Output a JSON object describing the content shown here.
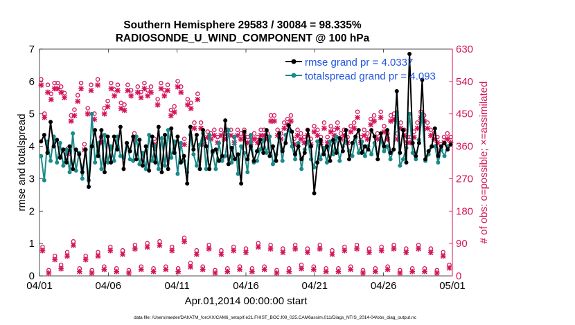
{
  "chart_data": {
    "type": "line",
    "title_line1": "Southern Hemisphere 29583 / 30084 = 98.335%",
    "title_line2": "RADIOSONDE_U_WIND_COMPONENT @ 100 hPa",
    "xlabel": "Apr.01,2014 00:00:00 start",
    "ylabel": "rmse and totalspread",
    "y2label": "# of obs: o=possible; ×=assimilated",
    "footer": "data file: /Users/raeder/DAI/ATM_forcXX/CAM6_setup/f.e21.FHIST_BGC.f09_025.CAM6assim.011/Diags_NTrS_2014-04/obs_diag_output.nc",
    "x_range_days": [
      0,
      30
    ],
    "ylim": [
      0,
      7
    ],
    "y2lim": [
      0,
      630
    ],
    "x_ticks": [
      {
        "day": 0,
        "label": "04/01"
      },
      {
        "day": 5,
        "label": "04/06"
      },
      {
        "day": 10,
        "label": "04/11"
      },
      {
        "day": 15,
        "label": "04/16"
      },
      {
        "day": 20,
        "label": "04/21"
      },
      {
        "day": 25,
        "label": "04/26"
      },
      {
        "day": 30,
        "label": "05/01"
      }
    ],
    "y_ticks": [
      "0",
      "1",
      "2",
      "3",
      "4",
      "5",
      "6",
      "7"
    ],
    "y2_ticks": [
      "0",
      "90",
      "180",
      "270",
      "360",
      "450",
      "540",
      "630"
    ],
    "colors": {
      "rmse": "#000000",
      "spread": "#1a8a8a",
      "obs": "#d4145a",
      "legend_text": "#1f55e0"
    },
    "legend": [
      {
        "label": "rmse grand pr = 4.0337",
        "series": "rmse"
      },
      {
        "label": "totalspread grand pr = 4.093",
        "series": "spread"
      }
    ],
    "series": [
      {
        "name": "rmse",
        "values": [
          4.15,
          4.35,
          3.8,
          4.75,
          4.0,
          4.2,
          3.65,
          3.9,
          3.5,
          4.0,
          3.3,
          3.9,
          3.75,
          3.2,
          3.9,
          2.75,
          4.0,
          4.5,
          3.7,
          4.5,
          3.2,
          4.3,
          3.5,
          4.3,
          3.9,
          4.6,
          3.3,
          4.1,
          3.85,
          4.3,
          3.6,
          4.2,
          3.4,
          4.0,
          3.25,
          4.3,
          3.5,
          4.6,
          3.2,
          4.35,
          3.3,
          4.55,
          3.8,
          4.3,
          3.5,
          3.7,
          2.85,
          4.6,
          3.9,
          4.35,
          3.3,
          4.5,
          4.0,
          3.3,
          3.85,
          3.9,
          3.55,
          3.7,
          4.8,
          3.45,
          3.95,
          3.6,
          3.75,
          2.85,
          4.45,
          3.6,
          4.0,
          3.55,
          3.85,
          4.2,
          3.8,
          4.5,
          3.7,
          4.0,
          3.55,
          4.4,
          3.85,
          4.1,
          4.65,
          4.45,
          3.75,
          4.0,
          3.6,
          3.8,
          4.5,
          4.0,
          2.55,
          3.5,
          4.2,
          3.75,
          4.0,
          3.55,
          4.2,
          3.8,
          4.25,
          3.85,
          4.5,
          3.6,
          4.1,
          4.3,
          4.5,
          3.8,
          4.0,
          3.9,
          4.5,
          4.3,
          3.6,
          4.4,
          4.0,
          4.5,
          3.8,
          3.9,
          5.7,
          3.8,
          4.5,
          3.5,
          6.85,
          4.1,
          3.7,
          4.1,
          6.05,
          3.6,
          3.85,
          4.0,
          4.55,
          3.7,
          4.0,
          4.1,
          3.9,
          4.05
        ]
      },
      {
        "name": "totalspread",
        "values": [
          3.7,
          2.95,
          4.15,
          3.55,
          4.3,
          3.5,
          4.1,
          3.4,
          3.9,
          3.2,
          4.4,
          3.25,
          3.8,
          3.0,
          3.9,
          2.95,
          5.0,
          3.5,
          4.1,
          3.3,
          4.35,
          3.5,
          4.0,
          3.55,
          4.3,
          3.7,
          3.65,
          4.1,
          3.6,
          3.55,
          4.3,
          3.45,
          3.8,
          3.3,
          4.35,
          3.55,
          4.0,
          3.3,
          4.25,
          3.4,
          4.5,
          3.65,
          4.15,
          3.15,
          4.1,
          3.55,
          3.2,
          4.35,
          3.75,
          3.4,
          4.05,
          4.4,
          3.3,
          4.35,
          3.8,
          3.3,
          4.1,
          3.55,
          3.7,
          4.5,
          3.5,
          4.3,
          3.15,
          4.0,
          3.8,
          3.2,
          4.35,
          3.5,
          3.55,
          3.9,
          4.2,
          3.8,
          4.3,
          3.45,
          3.75,
          4.25,
          3.55,
          4.35,
          4.5,
          4.0,
          3.6,
          4.1,
          3.3,
          3.9,
          4.15,
          3.6,
          3.35,
          4.15,
          3.6,
          3.95,
          3.5,
          4.15,
          3.75,
          4.3,
          3.55,
          4.0,
          4.15,
          3.85,
          3.7,
          4.25,
          3.8,
          4.15,
          3.7,
          4.0,
          3.75,
          4.1,
          3.6,
          4.2,
          3.85,
          4.0,
          3.6,
          3.9,
          5.05,
          3.4,
          3.6,
          3.95,
          5.0,
          3.8,
          3.6,
          4.2,
          5.0,
          3.55,
          3.75,
          4.0,
          4.0,
          3.5,
          3.9,
          3.7,
          4.0,
          4.05
        ]
      },
      {
        "name": "possible_obs",
        "values": [
          540,
          445,
          525,
          500,
          530,
          530,
          520,
          502,
          348,
          440,
          456,
          496,
          530,
          360,
          460,
          525,
          445,
          540,
          380,
          460,
          480,
          530,
          512,
          525,
          475,
          470,
          525,
          510,
          390,
          520,
          505,
          530,
          510,
          520,
          375,
          485,
          530,
          510,
          525,
          455,
          465,
          535,
          520,
          375,
          485,
          475,
          420,
          500,
          420,
          375,
          395,
          390,
          400,
          380,
          400,
          390,
          400,
          400,
          380,
          400,
          390,
          400,
          380,
          380,
          390,
          380,
          400,
          400,
          390,
          440,
          440,
          400,
          390,
          420,
          430,
          440,
          375,
          400,
          390,
          380,
          400,
          375,
          410,
          400,
          380,
          420,
          380,
          410,
          400,
          420,
          390,
          400,
          380,
          410,
          420,
          450,
          380,
          400,
          390,
          430,
          440,
          390,
          450,
          410,
          390,
          440,
          445,
          390,
          420,
          400,
          380,
          380,
          395,
          420,
          450,
          440,
          420,
          400,
          390,
          380,
          360,
          380,
          390,
          380
        ]
      },
      {
        "name": "assimilated_obs",
        "values": [
          530,
          440,
          510,
          490,
          520,
          520,
          510,
          495,
          340,
          430,
          445,
          485,
          520,
          350,
          450,
          515,
          435,
          530,
          370,
          450,
          470,
          520,
          500,
          515,
          465,
          460,
          515,
          500,
          380,
          510,
          495,
          520,
          500,
          510,
          365,
          475,
          520,
          500,
          515,
          445,
          455,
          525,
          510,
          365,
          475,
          465,
          410,
          490,
          410,
          365,
          385,
          380,
          390,
          370,
          390,
          380,
          390,
          390,
          370,
          390,
          380,
          390,
          370,
          370,
          380,
          370,
          390,
          390,
          380,
          430,
          430,
          390,
          380,
          410,
          420,
          430,
          365,
          390,
          380,
          370,
          390,
          365,
          400,
          390,
          370,
          410,
          370,
          400,
          390,
          410,
          380,
          390,
          370,
          400,
          410,
          440,
          370,
          390,
          380,
          420,
          430,
          380,
          440,
          400,
          380,
          430,
          435,
          380,
          410,
          390,
          370,
          370,
          385,
          410,
          440,
          430,
          410,
          390,
          380,
          370,
          350,
          370,
          380,
          370
        ]
      },
      {
        "name": "possible_obs_low",
        "values": [
          75,
          10,
          50,
          25,
          60,
          90,
          15,
          50,
          10,
          60,
          20,
          75,
          15,
          65,
          10,
          80,
          20,
          85,
          15,
          90,
          20,
          75,
          15,
          100,
          30,
          65,
          20,
          80,
          10,
          65,
          15,
          75,
          20,
          70,
          15,
          85,
          20,
          80,
          10,
          70,
          15,
          80,
          25,
          70,
          20,
          80,
          15,
          65,
          15,
          75,
          20,
          80,
          10,
          70,
          15,
          75,
          20,
          80,
          10,
          70,
          15,
          80,
          15,
          70,
          10,
          60,
          25
        ]
      },
      {
        "name": "assimilated_obs_low",
        "values": [
          70,
          8,
          45,
          20,
          55,
          85,
          12,
          45,
          8,
          55,
          18,
          70,
          12,
          60,
          8,
          75,
          18,
          80,
          12,
          85,
          18,
          70,
          12,
          95,
          25,
          60,
          18,
          75,
          8,
          60,
          12,
          70,
          18,
          65,
          12,
          80,
          18,
          75,
          8,
          65,
          12,
          75,
          20,
          65,
          18,
          75,
          12,
          60,
          12,
          70,
          18,
          75,
          8,
          65,
          12,
          70,
          18,
          75,
          8,
          65,
          12,
          75,
          12,
          65,
          8,
          55,
          22
        ]
      }
    ]
  }
}
